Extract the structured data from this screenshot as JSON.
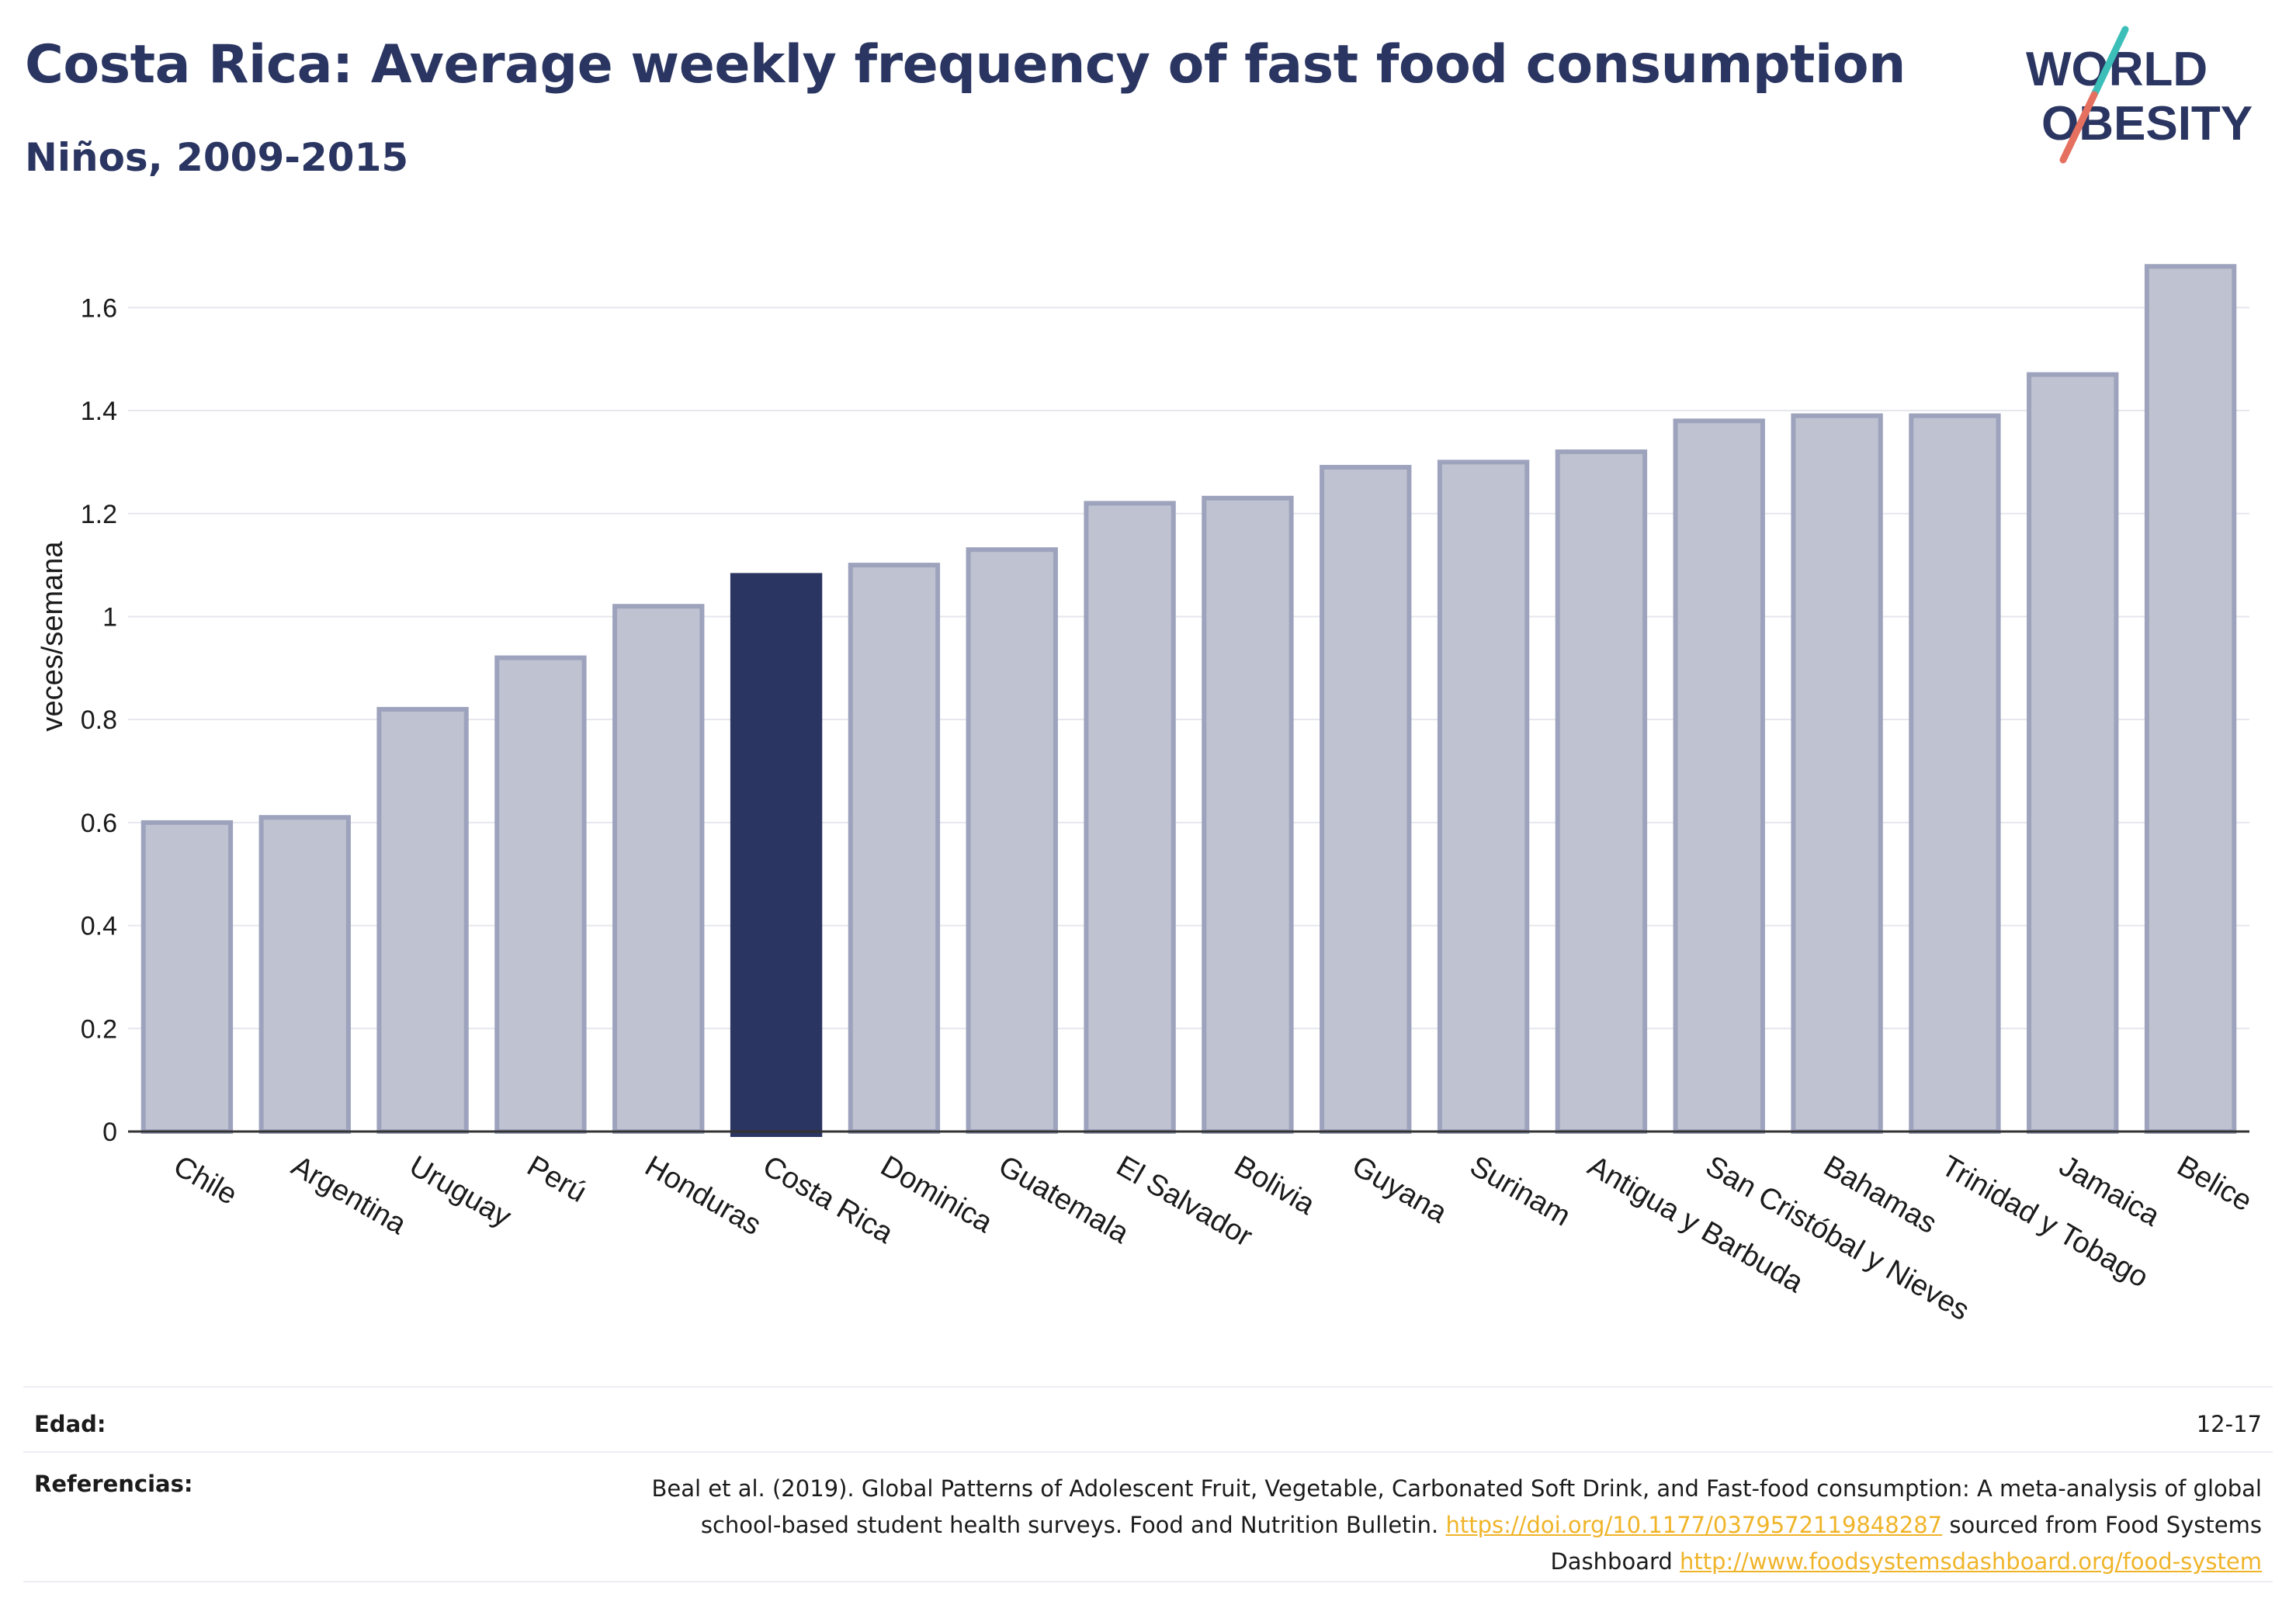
{
  "header": {
    "title": "Costa Rica: Average weekly frequency of fast food consumption",
    "subtitle": "Niños, 2009-2015"
  },
  "logo": {
    "line1": "WORLD",
    "line2": "OBESITY",
    "colors": {
      "text": "#2a3561",
      "slash_teal": "#3bbfb8",
      "slash_red": "#e5705f"
    }
  },
  "chart_data": {
    "type": "bar",
    "ylabel": "veces/semana",
    "ylim": [
      0,
      1.7
    ],
    "yticks": [
      "0",
      "0.2",
      "0.4",
      "0.6",
      "0.8",
      "1",
      "1.2",
      "1.4",
      "1.6"
    ],
    "grid": true,
    "highlight": "Costa Rica",
    "colors": {
      "bar": "#bfc2d0",
      "bar_border": "#9ea3bd",
      "highlight": "#2a3561"
    },
    "categories": [
      "Chile",
      "Argentina",
      "Uruguay",
      "Perú",
      "Honduras",
      "Costa Rica",
      "Dominica",
      "Guatemala",
      "El Salvador",
      "Bolivia",
      "Guyana",
      "Surinam",
      "Antigua y Barbuda",
      "San Cristóbal y Nieves",
      "Bahamas",
      "Trinidad y Tobago",
      "Jamaica",
      "Belice"
    ],
    "values": [
      0.6,
      0.61,
      0.82,
      0.92,
      1.02,
      1.08,
      1.1,
      1.13,
      1.22,
      1.23,
      1.29,
      1.3,
      1.32,
      1.38,
      1.39,
      1.39,
      1.47,
      1.68
    ]
  },
  "footer": {
    "age_label": "Edad:",
    "age_value": "12-17",
    "ref_label": "Referencias:",
    "ref_text_1": "Beal et al. (2019). Global Patterns of Adolescent Fruit, Vegetable, Carbonated Soft Drink, and Fast-food consumption: A meta-analysis of global school-based student health surveys. Food and Nutrition Bulletin.",
    "ref_link_1": "https://doi.org/10.1177/0379572119848287",
    "ref_text_2": "sourced from Food Systems Dashboard",
    "ref_link_2": "http://www.foodsystemsdashboard.org/food-system",
    "link_color": "#f0b429"
  }
}
